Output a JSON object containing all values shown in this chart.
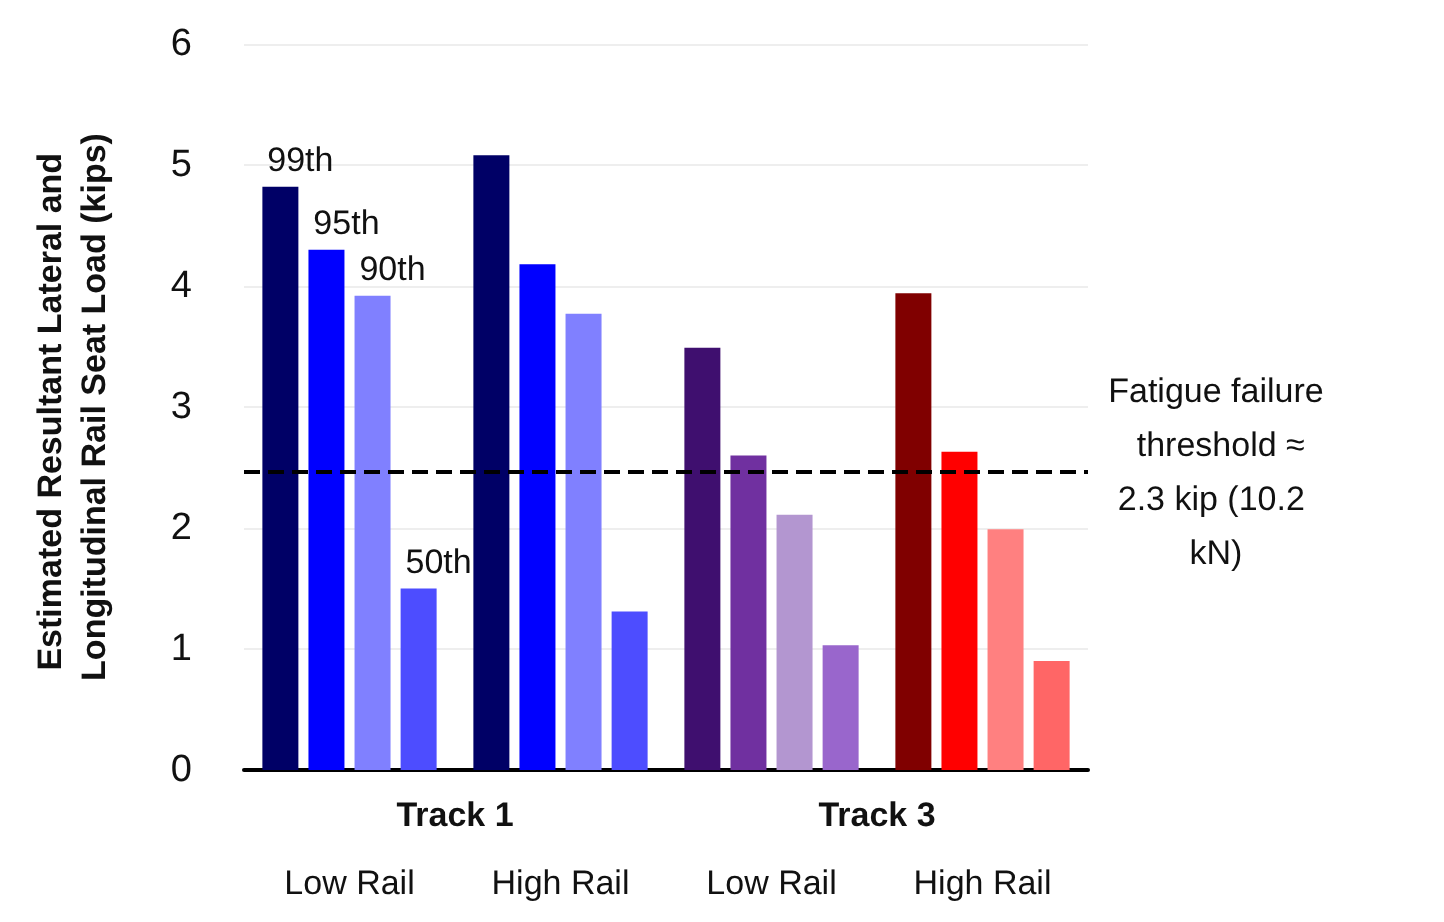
{
  "chart_data": {
    "type": "bar",
    "ylabel": "Estimated Resultant Lateral and Longitudinal Rail Seat Load (kips)",
    "categories": [
      "Low Rail",
      "High Rail",
      "Low Rail",
      "High Rail"
    ],
    "series": [
      {
        "name": "99th",
        "colors": [
          "#000066",
          "#000066",
          "#3f0f6f",
          "#800000"
        ],
        "values": [
          4.82,
          5.08,
          3.49,
          3.94
        ]
      },
      {
        "name": "95th",
        "colors": [
          "#0000ff",
          "#0000ff",
          "#7030a0",
          "#ff0000"
        ],
        "values": [
          4.3,
          4.18,
          2.6,
          2.63
        ]
      },
      {
        "name": "90th",
        "colors": [
          "#8080ff",
          "#8080ff",
          "#b396d0",
          "#ff8080"
        ],
        "values": [
          3.92,
          3.77,
          2.11,
          1.99
        ]
      },
      {
        "name": "50th",
        "colors": [
          "#4d4dff",
          "#4d4dff",
          "#9966cc",
          "#ff6666"
        ],
        "values": [
          1.5,
          1.31,
          1.03,
          0.9
        ]
      }
    ],
    "ylim": [
      0,
      6
    ],
    "yticks": [
      0,
      1,
      2,
      3,
      4,
      5,
      6
    ],
    "grid": "y",
    "legend": false,
    "ref_lines": [
      {
        "axis": "y",
        "value": 2.46,
        "label": "Fatigue failure threshold ≈2.3 kip (10.2 kN)",
        "color": "#000000",
        "line_style": "dashed"
      }
    ],
    "annotations": [
      "Track 1",
      "Track 3"
    ]
  }
}
